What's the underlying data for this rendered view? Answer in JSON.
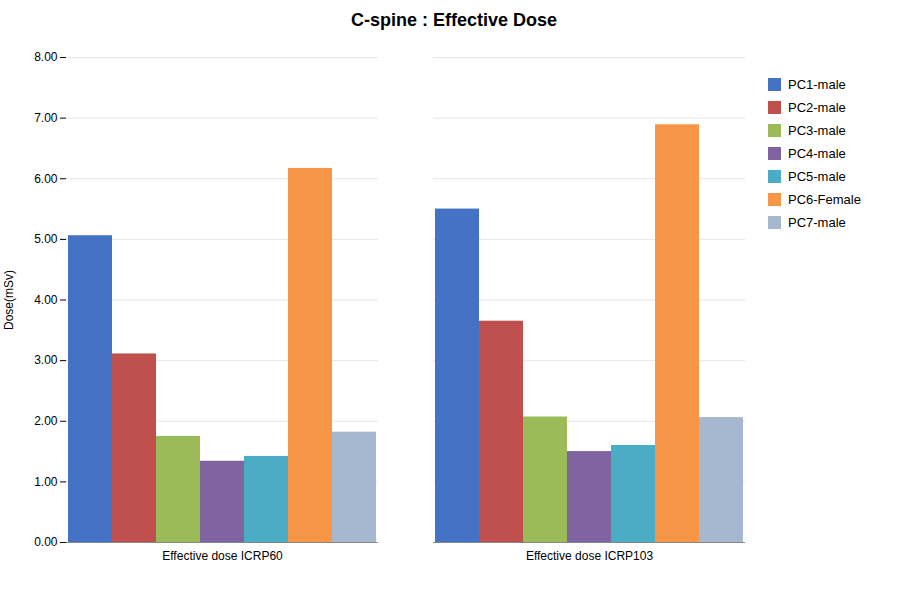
{
  "chart_data": {
    "type": "bar",
    "title": "C-spine : Effective Dose",
    "ylabel": "Dose(mSv)",
    "categories": [
      "Effective dose ICRP60",
      "Effective dose ICRP103"
    ],
    "series": [
      {
        "name": "PC1-male",
        "color": "#4472C4",
        "values": [
          5.06,
          5.5
        ]
      },
      {
        "name": "PC2-male",
        "color": "#C0504D",
        "values": [
          3.11,
          3.65
        ]
      },
      {
        "name": "PC3-male",
        "color": "#9BBB59",
        "values": [
          1.75,
          2.07
        ]
      },
      {
        "name": "PC4-male",
        "color": "#8064A2",
        "values": [
          1.34,
          1.5
        ]
      },
      {
        "name": "PC5-male",
        "color": "#4BACC6",
        "values": [
          1.42,
          1.6
        ]
      },
      {
        "name": "PC6-Female",
        "color": "#F79646",
        "values": [
          6.17,
          6.89
        ]
      },
      {
        "name": "PC7-male",
        "color": "#A5B8D0",
        "values": [
          1.82,
          2.06
        ]
      }
    ],
    "ylim": [
      0.0,
      8.0
    ],
    "yticks": [
      {
        "value": 0.0,
        "label": "0.00"
      },
      {
        "value": 1.0,
        "label": "1.00"
      },
      {
        "value": 2.0,
        "label": "2.00"
      },
      {
        "value": 3.0,
        "label": "3.00"
      },
      {
        "value": 4.0,
        "label": "4.00"
      },
      {
        "value": 5.0,
        "label": "5.00"
      },
      {
        "value": 6.0,
        "label": "6.00"
      },
      {
        "value": 7.0,
        "label": "7.00"
      },
      {
        "value": 8.0,
        "label": "8.00"
      }
    ],
    "grid": true,
    "legend": "right"
  }
}
